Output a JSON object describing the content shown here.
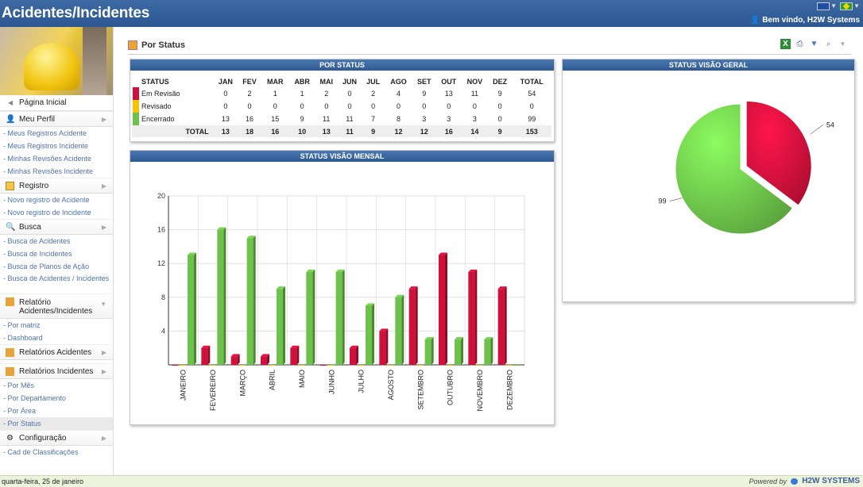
{
  "header": {
    "title": "Acidentes/Incidentes",
    "welcome": "Bem vindo,  H2W Systems"
  },
  "sidebar": {
    "home": "Página Inicial",
    "sections": [
      {
        "label": "Meu Perfil",
        "icon": "user-icon",
        "items": [
          "- Meus Registros Acidente",
          "- Meus Registros Incidente",
          "- Minhas Revisões Acidente",
          "- Minhas Revisões Incidente"
        ]
      },
      {
        "label": "Registro",
        "icon": "clipboard-icon",
        "items": [
          "- Novo registro de Acidente",
          "- Novo registro de Incidente"
        ]
      },
      {
        "label": "Busca",
        "icon": "magnifier-icon",
        "items": [
          "- Busca de Acidentes",
          "- Busca de Incidentes",
          "- Busca de Planos de Ação",
          "- Busca de Acidentes / Incidentes"
        ]
      },
      {
        "label": "Relatório Acidentes/Incidentes",
        "icon": "report-icon",
        "items": [
          "- Por matriz",
          "- Dashboard"
        ]
      },
      {
        "label": "Relatórios Acidentes",
        "icon": "report-icon",
        "items": []
      },
      {
        "label": "Relatórios Incidentes",
        "icon": "report-icon",
        "items": [
          "- Por Mês",
          "- Por Departamento",
          "- Por Área",
          "- Por Status"
        ]
      },
      {
        "label": "Configuração",
        "icon": "gear-icon",
        "items": [
          "- Cad de Classificações"
        ]
      }
    ]
  },
  "page": {
    "title": "Por Status"
  },
  "status_table": {
    "title": "POR STATUS",
    "headers": [
      "STATUS",
      "JAN",
      "FEV",
      "MAR",
      "ABR",
      "MAI",
      "JUN",
      "JUL",
      "AGO",
      "SET",
      "OUT",
      "NOV",
      "DEZ",
      "TOTAL"
    ],
    "rows": [
      {
        "label": "Em Revisão",
        "color": "#d0103a",
        "values": [
          "0",
          "2",
          "1",
          "1",
          "2",
          "0",
          "2",
          "4",
          "9",
          "13",
          "11",
          "9",
          "54"
        ]
      },
      {
        "label": "Revisado",
        "color": "#f5c400",
        "values": [
          "0",
          "0",
          "0",
          "0",
          "0",
          "0",
          "0",
          "0",
          "0",
          "0",
          "0",
          "0",
          "0"
        ]
      },
      {
        "label": "Encerrado",
        "color": "#6cc24a",
        "values": [
          "13",
          "16",
          "15",
          "9",
          "11",
          "11",
          "7",
          "8",
          "3",
          "3",
          "3",
          "0",
          "99"
        ]
      }
    ],
    "total": {
      "label": "TOTAL",
      "values": [
        "13",
        "18",
        "16",
        "10",
        "13",
        "11",
        "9",
        "12",
        "12",
        "16",
        "14",
        "9",
        "153"
      ]
    }
  },
  "chart_data": [
    {
      "type": "bar",
      "title": "STATUS VISÃO MENSAL",
      "categories": [
        "JANEIRO",
        "FEVEREIRO",
        "MARÇO",
        "ABRIL",
        "MAIO",
        "JUNHO",
        "JULHO",
        "AGOSTO",
        "SETEMBRO",
        "OUTUBRO",
        "NOVEMBRO",
        "DEZEMBRO"
      ],
      "series": [
        {
          "color": "#d0103a",
          "values": [
            0,
            2,
            1,
            1,
            2,
            0,
            2,
            4,
            9,
            13,
            11,
            9
          ]
        },
        {
          "color": "#f5c400",
          "values": [
            0,
            0,
            0,
            0,
            0,
            0,
            0,
            0,
            0,
            0,
            0,
            0
          ]
        },
        {
          "color": "#6cc24a",
          "values": [
            13,
            16,
            15,
            9,
            11,
            11,
            7,
            8,
            3,
            3,
            3,
            0
          ]
        }
      ],
      "yticks": [
        "4",
        "8",
        "12",
        "16",
        "20"
      ],
      "ylim": [
        0,
        20
      ],
      "grid": true
    },
    {
      "type": "pie",
      "title": "STATUS VISÃO GERAL",
      "slices": [
        {
          "value": 54,
          "label": "54",
          "color": "#d0103a"
        },
        {
          "value": 99,
          "label": "99",
          "color": "#6cc24a"
        }
      ]
    }
  ],
  "footer": {
    "date": "quarta-feira, 25 de janeiro",
    "powered": "Powered by",
    "brand": "H2W SYSTEMS"
  }
}
